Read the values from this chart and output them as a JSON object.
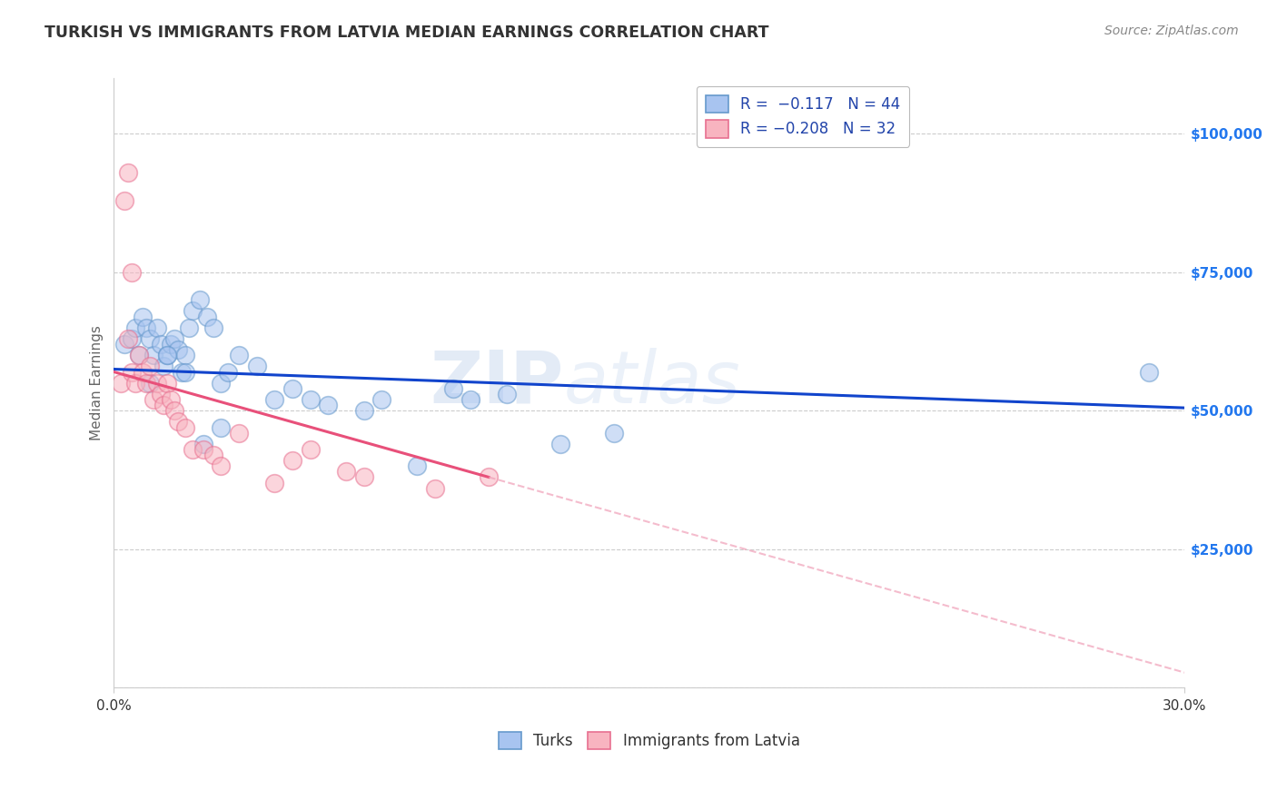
{
  "title": "TURKISH VS IMMIGRANTS FROM LATVIA MEDIAN EARNINGS CORRELATION CHART",
  "source": "Source: ZipAtlas.com",
  "ylabel": "Median Earnings",
  "watermark": "ZIP\natlas",
  "xlim": [
    0.0,
    30.0
  ],
  "ylim": [
    0,
    110000
  ],
  "yticks": [
    0,
    25000,
    50000,
    75000,
    100000
  ],
  "ytick_labels": [
    "",
    "$25,000",
    "$50,000",
    "$75,000",
    "$100,000"
  ],
  "blue_series": {
    "name": "Turks",
    "R": -0.117,
    "N": 44,
    "scatter_color": "#a8c4f0",
    "edge_color": "#6699cc",
    "trend_color": "#1144cc",
    "points_x": [
      0.3,
      0.5,
      0.6,
      0.7,
      0.8,
      0.9,
      1.0,
      1.1,
      1.2,
      1.3,
      1.4,
      1.5,
      1.6,
      1.7,
      1.8,
      1.9,
      2.0,
      2.1,
      2.2,
      2.4,
      2.6,
      2.8,
      3.0,
      3.2,
      3.5,
      4.0,
      4.5,
      5.0,
      5.5,
      6.0,
      7.0,
      7.5,
      8.5,
      9.5,
      10.0,
      11.0,
      12.5,
      14.0,
      1.0,
      1.5,
      2.0,
      2.5,
      3.0,
      29.0
    ],
    "points_y": [
      62000,
      63000,
      65000,
      60000,
      67000,
      65000,
      63000,
      60000,
      65000,
      62000,
      58000,
      60000,
      62000,
      63000,
      61000,
      57000,
      60000,
      65000,
      68000,
      70000,
      67000,
      65000,
      55000,
      57000,
      60000,
      58000,
      52000,
      54000,
      52000,
      51000,
      50000,
      52000,
      40000,
      54000,
      52000,
      53000,
      44000,
      46000,
      55000,
      60000,
      57000,
      44000,
      47000,
      57000
    ]
  },
  "pink_series": {
    "name": "Immigrants from Latvia",
    "R": -0.208,
    "N": 32,
    "scatter_color": "#f8b4c0",
    "edge_color": "#e87090",
    "trend_color": "#e8507a",
    "trend_dash_color": "#f0a0b8",
    "solid_x_end": 10.5,
    "points_x": [
      0.2,
      0.4,
      0.5,
      0.6,
      0.7,
      0.8,
      0.9,
      1.0,
      1.1,
      1.2,
      1.3,
      1.4,
      1.5,
      1.6,
      1.7,
      1.8,
      2.0,
      2.2,
      2.5,
      2.8,
      3.0,
      3.5,
      4.5,
      5.0,
      5.5,
      6.5,
      7.0,
      9.0,
      10.5,
      0.3,
      0.4,
      0.5
    ],
    "points_y": [
      55000,
      63000,
      57000,
      55000,
      60000,
      57000,
      55000,
      58000,
      52000,
      55000,
      53000,
      51000,
      55000,
      52000,
      50000,
      48000,
      47000,
      43000,
      43000,
      42000,
      40000,
      46000,
      37000,
      41000,
      43000,
      39000,
      38000,
      36000,
      38000,
      88000,
      93000,
      75000
    ]
  },
  "background_color": "#ffffff",
  "plot_bg_color": "#ffffff",
  "grid_color": "#cccccc",
  "title_color": "#333333",
  "axis_label_color": "#666666",
  "ytick_color": "#2277ee",
  "xtick_color": "#333333"
}
